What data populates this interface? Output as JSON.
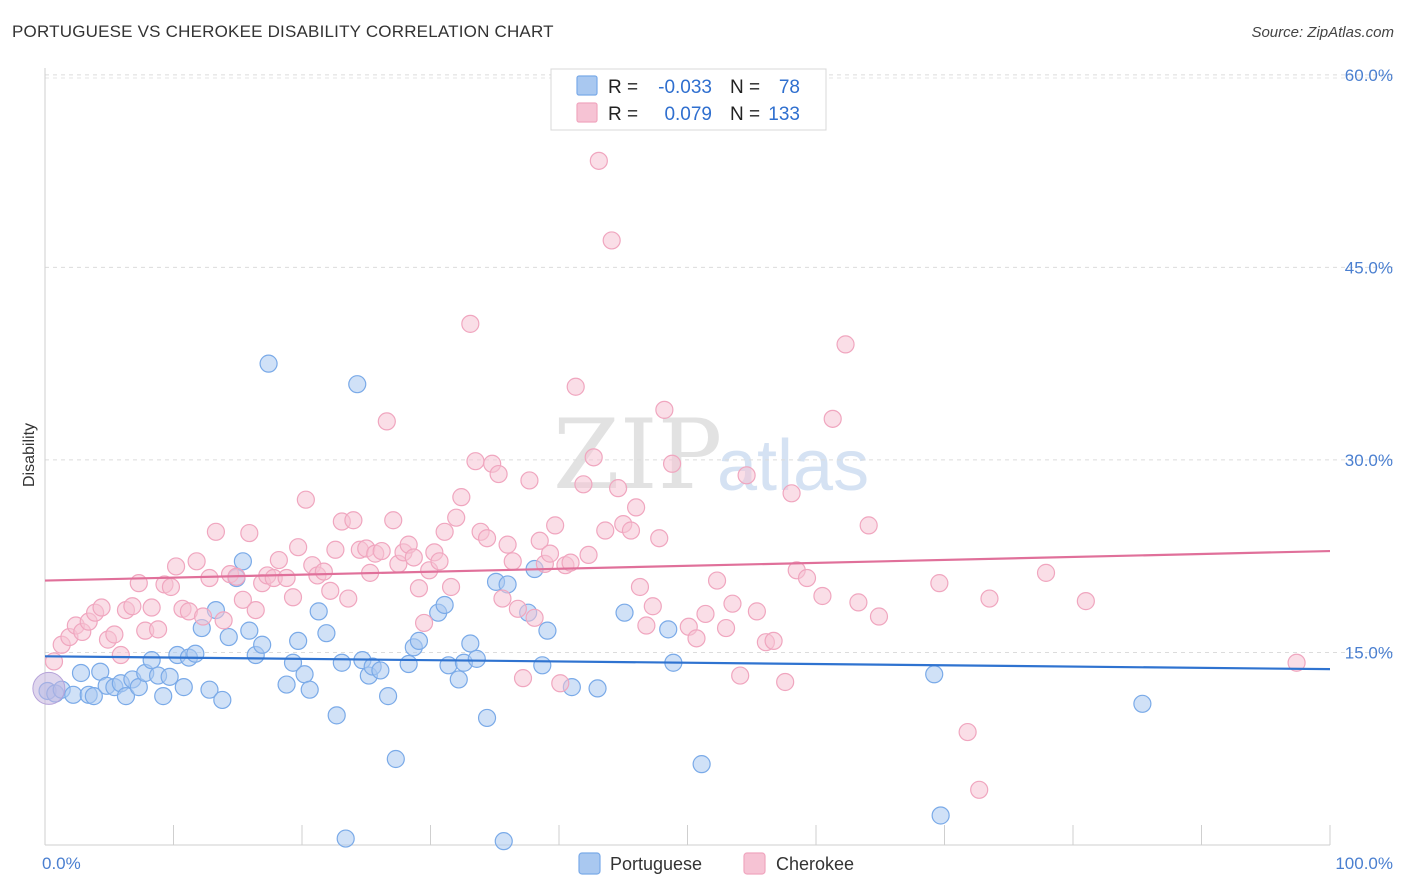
{
  "title": "PORTUGUESE VS CHEROKEE DISABILITY CORRELATION CHART",
  "source": "Source: ZipAtlas.com",
  "chart_data": {
    "type": "scatter",
    "ylabel": "Disability",
    "xlabel": "",
    "xlim": [
      0,
      100
    ],
    "ylim": [
      0,
      61
    ],
    "x_tick_labels": [
      {
        "value": 0,
        "label": "0.0%"
      },
      {
        "value": 100,
        "label": "100.0%"
      }
    ],
    "y_tick_labels": [
      {
        "value": 15,
        "label": "15.0%"
      },
      {
        "value": 30,
        "label": "30.0%"
      },
      {
        "value": 45,
        "label": "45.0%"
      },
      {
        "value": 60,
        "label": "60.0%"
      }
    ],
    "grid": {
      "horizontal": true,
      "style": "dashed"
    },
    "legend_position": "top-center",
    "watermark": {
      "zip": "ZIP",
      "atlas": "atlas"
    },
    "series": [
      {
        "name": "Portuguese",
        "color": "#7aaae8",
        "fill": "#a9c8f0",
        "line_color": "#2f73d0",
        "R": "-0.033",
        "N": "78",
        "trend": {
          "x": [
            0,
            100
          ],
          "y": [
            14.7,
            13.7
          ]
        },
        "points": [
          [
            0.2,
            12.0
          ],
          [
            0.8,
            11.8
          ],
          [
            1.3,
            12.1
          ],
          [
            2.2,
            11.7
          ],
          [
            2.8,
            13.4
          ],
          [
            3.4,
            11.7
          ],
          [
            3.8,
            11.6
          ],
          [
            4.3,
            13.5
          ],
          [
            4.8,
            12.4
          ],
          [
            5.4,
            12.3
          ],
          [
            5.9,
            12.6
          ],
          [
            6.3,
            11.6
          ],
          [
            6.8,
            12.9
          ],
          [
            7.3,
            12.3
          ],
          [
            7.8,
            13.4
          ],
          [
            8.3,
            14.4
          ],
          [
            8.8,
            13.2
          ],
          [
            9.2,
            11.6
          ],
          [
            9.7,
            13.1
          ],
          [
            10.3,
            14.8
          ],
          [
            10.8,
            12.3
          ],
          [
            11.2,
            14.6
          ],
          [
            11.7,
            14.9
          ],
          [
            12.2,
            16.9
          ],
          [
            12.8,
            12.1
          ],
          [
            13.3,
            18.3
          ],
          [
            13.8,
            11.3
          ],
          [
            14.3,
            16.2
          ],
          [
            14.9,
            20.8
          ],
          [
            15.4,
            22.1
          ],
          [
            15.9,
            16.7
          ],
          [
            16.4,
            14.8
          ],
          [
            16.9,
            15.6
          ],
          [
            17.4,
            37.5
          ],
          [
            18.8,
            12.5
          ],
          [
            19.3,
            14.2
          ],
          [
            19.7,
            15.9
          ],
          [
            20.2,
            13.3
          ],
          [
            20.6,
            12.1
          ],
          [
            21.3,
            18.2
          ],
          [
            21.9,
            16.5
          ],
          [
            22.7,
            10.1
          ],
          [
            23.1,
            14.2
          ],
          [
            23.4,
            0.5
          ],
          [
            24.3,
            35.9
          ],
          [
            24.7,
            14.4
          ],
          [
            25.2,
            13.2
          ],
          [
            25.5,
            13.9
          ],
          [
            26.1,
            13.6
          ],
          [
            26.7,
            11.6
          ],
          [
            27.3,
            6.7
          ],
          [
            28.3,
            14.1
          ],
          [
            28.7,
            15.4
          ],
          [
            29.1,
            15.9
          ],
          [
            30.6,
            18.1
          ],
          [
            31.1,
            18.7
          ],
          [
            31.4,
            14.0
          ],
          [
            32.2,
            12.9
          ],
          [
            32.6,
            14.2
          ],
          [
            33.1,
            15.7
          ],
          [
            33.6,
            14.5
          ],
          [
            34.4,
            9.9
          ],
          [
            35.1,
            20.5
          ],
          [
            36.0,
            20.3
          ],
          [
            37.6,
            18.1
          ],
          [
            38.1,
            21.5
          ],
          [
            38.7,
            14.0
          ],
          [
            39.1,
            16.7
          ],
          [
            41.0,
            12.3
          ],
          [
            43.0,
            12.2
          ],
          [
            45.1,
            18.1
          ],
          [
            48.5,
            16.8
          ],
          [
            48.9,
            14.2
          ],
          [
            51.1,
            6.3
          ],
          [
            69.2,
            13.3
          ],
          [
            69.7,
            2.3
          ],
          [
            85.4,
            11.0
          ],
          [
            35.7,
            0.3
          ]
        ]
      },
      {
        "name": "Cherokee",
        "color": "#f0a6bf",
        "fill": "#f6c3d4",
        "line_color": "#e0709a",
        "R": "0.079",
        "N": "133",
        "trend": {
          "x": [
            0,
            100
          ],
          "y": [
            20.6,
            22.9
          ]
        },
        "points": [
          [
            0.7,
            14.3
          ],
          [
            1.3,
            15.6
          ],
          [
            1.9,
            16.2
          ],
          [
            2.4,
            17.1
          ],
          [
            2.9,
            16.6
          ],
          [
            3.4,
            17.4
          ],
          [
            3.9,
            18.1
          ],
          [
            4.4,
            18.5
          ],
          [
            4.9,
            16.0
          ],
          [
            5.4,
            16.4
          ],
          [
            5.9,
            14.8
          ],
          [
            6.3,
            18.3
          ],
          [
            6.8,
            18.6
          ],
          [
            7.3,
            20.4
          ],
          [
            7.8,
            16.7
          ],
          [
            8.3,
            18.5
          ],
          [
            8.8,
            16.8
          ],
          [
            9.3,
            20.3
          ],
          [
            9.8,
            20.1
          ],
          [
            10.2,
            21.7
          ],
          [
            10.7,
            18.4
          ],
          [
            11.2,
            18.2
          ],
          [
            11.8,
            22.1
          ],
          [
            12.3,
            17.8
          ],
          [
            12.8,
            20.8
          ],
          [
            13.3,
            24.4
          ],
          [
            13.9,
            17.5
          ],
          [
            14.4,
            21.1
          ],
          [
            14.9,
            20.9
          ],
          [
            15.4,
            19.1
          ],
          [
            15.9,
            24.3
          ],
          [
            16.4,
            18.3
          ],
          [
            16.9,
            20.4
          ],
          [
            17.3,
            21.0
          ],
          [
            17.8,
            20.8
          ],
          [
            18.2,
            22.2
          ],
          [
            18.8,
            20.8
          ],
          [
            19.3,
            19.3
          ],
          [
            19.7,
            23.2
          ],
          [
            20.3,
            26.9
          ],
          [
            20.8,
            21.8
          ],
          [
            21.2,
            21.0
          ],
          [
            21.7,
            21.3
          ],
          [
            22.2,
            19.8
          ],
          [
            22.6,
            23.0
          ],
          [
            23.1,
            25.2
          ],
          [
            23.6,
            19.2
          ],
          [
            24.0,
            25.3
          ],
          [
            24.5,
            23.0
          ],
          [
            25.0,
            23.1
          ],
          [
            25.3,
            21.2
          ],
          [
            25.7,
            22.7
          ],
          [
            26.2,
            22.9
          ],
          [
            26.6,
            33.0
          ],
          [
            27.1,
            25.3
          ],
          [
            27.5,
            21.9
          ],
          [
            27.9,
            22.8
          ],
          [
            28.3,
            23.4
          ],
          [
            28.7,
            22.4
          ],
          [
            29.1,
            20.0
          ],
          [
            29.5,
            17.3
          ],
          [
            29.9,
            21.4
          ],
          [
            30.3,
            22.8
          ],
          [
            30.7,
            22.1
          ],
          [
            31.1,
            24.4
          ],
          [
            31.6,
            20.1
          ],
          [
            32.0,
            25.5
          ],
          [
            32.4,
            27.1
          ],
          [
            33.1,
            40.6
          ],
          [
            33.5,
            29.9
          ],
          [
            33.9,
            24.4
          ],
          [
            34.4,
            23.9
          ],
          [
            34.8,
            29.7
          ],
          [
            35.3,
            28.9
          ],
          [
            35.6,
            19.2
          ],
          [
            36.0,
            23.4
          ],
          [
            36.4,
            22.1
          ],
          [
            36.8,
            18.4
          ],
          [
            37.2,
            13.0
          ],
          [
            37.7,
            28.4
          ],
          [
            38.1,
            17.7
          ],
          [
            38.5,
            23.7
          ],
          [
            38.9,
            21.9
          ],
          [
            39.3,
            22.7
          ],
          [
            39.7,
            24.9
          ],
          [
            40.1,
            12.6
          ],
          [
            40.5,
            21.8
          ],
          [
            40.9,
            22.0
          ],
          [
            41.3,
            35.7
          ],
          [
            41.9,
            28.1
          ],
          [
            42.3,
            22.6
          ],
          [
            42.7,
            30.2
          ],
          [
            43.1,
            53.3
          ],
          [
            43.6,
            24.5
          ],
          [
            44.1,
            47.1
          ],
          [
            44.6,
            27.8
          ],
          [
            45.0,
            25.0
          ],
          [
            45.6,
            24.5
          ],
          [
            46.0,
            26.3
          ],
          [
            46.3,
            20.1
          ],
          [
            46.8,
            17.1
          ],
          [
            47.3,
            18.6
          ],
          [
            47.8,
            23.9
          ],
          [
            48.2,
            33.9
          ],
          [
            48.8,
            29.7
          ],
          [
            50.1,
            17.0
          ],
          [
            50.7,
            16.1
          ],
          [
            51.4,
            18.0
          ],
          [
            52.3,
            20.6
          ],
          [
            53.0,
            16.9
          ],
          [
            53.5,
            18.8
          ],
          [
            54.1,
            13.2
          ],
          [
            54.6,
            28.8
          ],
          [
            55.4,
            18.2
          ],
          [
            56.1,
            15.8
          ],
          [
            56.7,
            15.9
          ],
          [
            57.6,
            12.7
          ],
          [
            58.1,
            27.4
          ],
          [
            58.5,
            21.4
          ],
          [
            59.3,
            20.8
          ],
          [
            60.5,
            19.4
          ],
          [
            61.3,
            33.2
          ],
          [
            62.3,
            39.0
          ],
          [
            63.3,
            18.9
          ],
          [
            64.1,
            24.9
          ],
          [
            64.9,
            17.8
          ],
          [
            69.6,
            20.4
          ],
          [
            71.8,
            8.8
          ],
          [
            72.7,
            4.3
          ],
          [
            73.5,
            19.2
          ],
          [
            77.9,
            21.2
          ],
          [
            81.0,
            19.0
          ],
          [
            97.4,
            14.2
          ]
        ]
      }
    ]
  },
  "legend": {
    "rows": [
      {
        "r_label": "R =",
        "r_value": "-0.033",
        "n_label": "N =",
        "n_value": "78"
      },
      {
        "r_label": "R =",
        "r_value": "0.079",
        "n_label": "N =",
        "n_value": "133"
      }
    ]
  },
  "bottom_legend": [
    "Portuguese",
    "Cherokee"
  ]
}
